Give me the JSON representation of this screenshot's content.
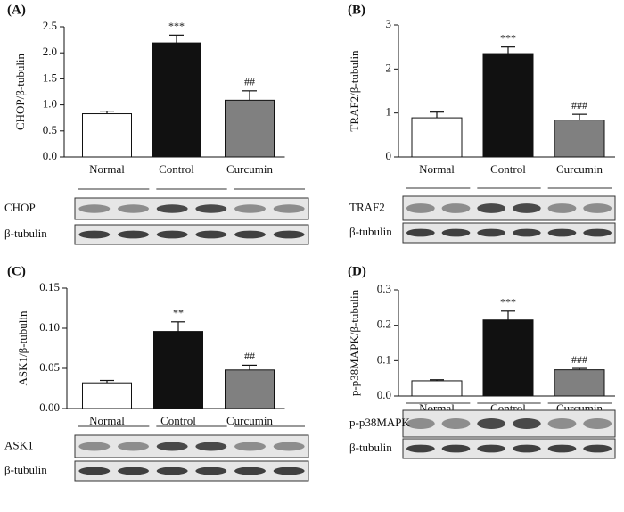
{
  "chart_data": [
    {
      "type": "bar",
      "panel": "(A)",
      "ylabel": "CHOP/β-tubulin",
      "categories": [
        "Normal",
        "Control",
        "Curcumin"
      ],
      "values": [
        0.83,
        2.19,
        1.09
      ],
      "errors": [
        0.05,
        0.15,
        0.18
      ],
      "colors": [
        "#ffffff",
        "#111111",
        "#808080"
      ],
      "annotations": [
        null,
        "***",
        "##"
      ],
      "ylim": [
        0,
        2.5
      ],
      "yticks": [
        {
          "value": 0,
          "label": "0.0"
        },
        0.5,
        {
          "value": 1,
          "label": "1.0"
        },
        1.5,
        {
          "value": 2,
          "label": "2.0"
        },
        2.5
      ],
      "blot_labels": [
        "CHOP",
        "β-tubulin"
      ]
    },
    {
      "type": "bar",
      "panel": "(B)",
      "ylabel": "TRAF2/β-tubulin",
      "categories": [
        "Normal",
        "Control",
        "Curcumin"
      ],
      "values": [
        0.89,
        2.35,
        0.84
      ],
      "errors": [
        0.13,
        0.15,
        0.13
      ],
      "colors": [
        "#ffffff",
        "#111111",
        "#808080"
      ],
      "annotations": [
        null,
        "***",
        "###"
      ],
      "ylim": [
        0,
        3
      ],
      "yticks": [
        0,
        1,
        2,
        3
      ],
      "blot_labels": [
        "TRAF2",
        "β-tubulin"
      ]
    },
    {
      "type": "bar",
      "panel": "(C)",
      "ylabel": "ASK1/β-tubulin",
      "categories": [
        "Normal",
        "Control",
        "Curcumin"
      ],
      "values": [
        0.032,
        0.096,
        0.048
      ],
      "errors": [
        0.003,
        0.012,
        0.006
      ],
      "colors": [
        "#ffffff",
        "#111111",
        "#808080"
      ],
      "annotations": [
        null,
        "**",
        "##"
      ],
      "ylim": [
        0,
        0.15
      ],
      "yticks": [
        {
          "value": 0,
          "label": "0.00"
        },
        0.05,
        {
          "value": 0.1,
          "label": "0.10"
        },
        0.15
      ],
      "blot_labels": [
        "ASK1",
        "β-tubulin"
      ]
    },
    {
      "type": "bar",
      "panel": "(D)",
      "ylabel": "p-p38MAPK/β-tubulin",
      "categories": [
        "Normal",
        "Control",
        "Curcumin"
      ],
      "values": [
        0.043,
        0.215,
        0.074
      ],
      "errors": [
        0.003,
        0.025,
        0.004
      ],
      "colors": [
        "#ffffff",
        "#111111",
        "#808080"
      ],
      "annotations": [
        null,
        "***",
        "###"
      ],
      "ylim": [
        0,
        0.3
      ],
      "yticks": [
        {
          "value": 0,
          "label": "0.0"
        },
        0.1,
        0.2,
        0.3
      ],
      "blot_labels": [
        "p-p38MAPK",
        "β-tubulin"
      ]
    }
  ]
}
